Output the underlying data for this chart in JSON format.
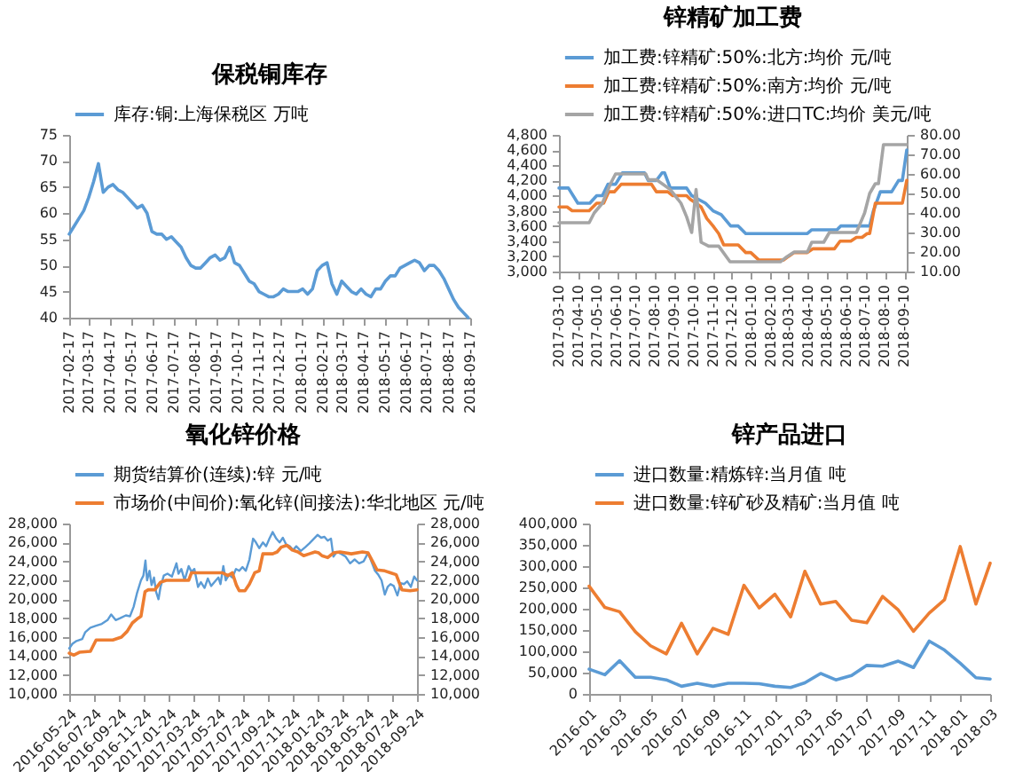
{
  "chart_data": [
    {
      "type": "line",
      "title": "保税铜库存",
      "legend": "top",
      "x": [
        "2017-02-17",
        "2017-02-24",
        "2017-03-03",
        "2017-03-10",
        "2017-03-17",
        "2017-03-24",
        "2017-03-31",
        "2017-04-07",
        "2017-04-14",
        "2017-04-21",
        "2017-04-28",
        "2017-05-05",
        "2017-05-12",
        "2017-05-19",
        "2017-05-26",
        "2017-06-02",
        "2017-06-09",
        "2017-06-16",
        "2017-06-23",
        "2017-06-30",
        "2017-07-07",
        "2017-07-14",
        "2017-07-21",
        "2017-07-28",
        "2017-08-04",
        "2017-08-11",
        "2017-08-18",
        "2017-08-25",
        "2017-09-01",
        "2017-09-08",
        "2017-09-15",
        "2017-09-22",
        "2017-09-29",
        "2017-10-06",
        "2017-10-13",
        "2017-10-20",
        "2017-10-27",
        "2017-11-03",
        "2017-11-10",
        "2017-11-17",
        "2017-11-24",
        "2017-12-01",
        "2017-12-08",
        "2017-12-15",
        "2017-12-22",
        "2017-12-29",
        "2018-01-05",
        "2018-01-12",
        "2018-01-19",
        "2018-01-26",
        "2018-02-02",
        "2018-02-09",
        "2018-02-16",
        "2018-02-23",
        "2018-03-02",
        "2018-03-09",
        "2018-03-16",
        "2018-03-23",
        "2018-03-30",
        "2018-04-06",
        "2018-04-13",
        "2018-04-20",
        "2018-04-27",
        "2018-05-04",
        "2018-05-11",
        "2018-05-18",
        "2018-05-25",
        "2018-06-01",
        "2018-06-08",
        "2018-06-15",
        "2018-06-22",
        "2018-06-29",
        "2018-07-06",
        "2018-07-13",
        "2018-07-20",
        "2018-07-27",
        "2018-08-03",
        "2018-08-10",
        "2018-08-17",
        "2018-08-24",
        "2018-08-31",
        "2018-09-07",
        "2018-09-14"
      ],
      "series": [
        {
          "name": "库存:铜:上海保税区 万吨",
          "color": "#5b9bd5",
          "values": [
            56,
            57.5,
            59,
            60.5,
            63,
            66,
            69.5,
            64,
            65,
            65.5,
            64.5,
            64,
            63,
            62,
            61,
            61.5,
            60,
            56.5,
            56,
            56,
            55,
            55.5,
            54.5,
            53.5,
            51.5,
            50,
            49.5,
            49.5,
            50.5,
            51.5,
            52,
            51,
            51.5,
            53.5,
            50.5,
            50,
            48.5,
            47,
            46.5,
            45,
            44.5,
            44,
            44,
            44.5,
            45.5,
            45,
            45,
            45,
            45.5,
            44.5,
            45.5,
            49,
            50,
            50.5,
            46.5,
            44.5,
            47,
            46,
            45,
            44.5,
            45.5,
            44.5,
            44,
            45.5,
            45.5,
            47,
            48,
            48,
            49.5,
            50,
            50.5,
            51,
            50.5,
            49,
            50,
            50,
            49,
            47.5,
            45.5,
            43.5,
            42,
            41,
            40
          ]
        }
      ],
      "xlim": [
        "2017-02-17",
        "2018-09-17"
      ],
      "xticks": [
        "2017-02-17",
        "2017-03-17",
        "2017-04-17",
        "2017-05-17",
        "2017-06-17",
        "2017-07-17",
        "2017-08-17",
        "2017-09-17",
        "2017-10-17",
        "2017-11-17",
        "2017-12-17",
        "2018-01-17",
        "2018-02-17",
        "2018-03-17",
        "2018-04-17",
        "2018-05-17",
        "2018-06-17",
        "2018-07-17",
        "2018-08-17",
        "2018-09-17"
      ],
      "ylim": [
        40,
        75
      ],
      "yticks": [
        40,
        45,
        50,
        55,
        60,
        65,
        70,
        75
      ]
    },
    {
      "type": "line",
      "title": "锌精矿加工费",
      "legend": "top",
      "series": [
        {
          "name": "加工费:锌精矿:50%:北方:均价 元/吨",
          "color": "#5b9bd5",
          "x": [
            "2017-03-10",
            "2017-03-25",
            "2017-04-09",
            "2017-04-28",
            "2017-05-09",
            "2017-05-18",
            "2017-05-27",
            "2017-06-08",
            "2017-06-19",
            "2017-07-24",
            "2017-07-30",
            "2017-08-12",
            "2017-08-21",
            "2017-08-25",
            "2017-09-03",
            "2017-09-29",
            "2017-10-07",
            "2017-10-18",
            "2017-10-29",
            "2017-11-10",
            "2017-11-23",
            "2017-12-08",
            "2017-12-20",
            "2018-01-01",
            "2018-04-09",
            "2018-04-16",
            "2018-05-26",
            "2018-06-01",
            "2018-07-17",
            "2018-07-23",
            "2018-08-03",
            "2018-08-21",
            "2018-09-01",
            "2018-09-07",
            "2018-09-14"
          ],
          "values": [
            4100,
            4100,
            3900,
            3900,
            4000,
            4000,
            4150,
            4150,
            4300,
            4300,
            4200,
            4200,
            4300,
            4300,
            4100,
            4100,
            4000,
            3950,
            3900,
            3800,
            3750,
            3600,
            3600,
            3500,
            3500,
            3550,
            3550,
            3600,
            3600,
            3800,
            4050,
            4050,
            4200,
            4200,
            4600
          ]
        },
        {
          "name": "加工费:锌精矿:50%:南方:均价 元/吨",
          "color": "#ed7d31",
          "x": [
            "2017-03-10",
            "2017-03-23",
            "2017-03-31",
            "2017-04-27",
            "2017-05-09",
            "2017-05-20",
            "2017-05-28",
            "2017-06-06",
            "2017-06-17",
            "2017-08-04",
            "2017-08-12",
            "2017-08-30",
            "2017-09-07",
            "2017-09-29",
            "2017-10-05",
            "2017-10-14",
            "2017-10-22",
            "2017-10-31",
            "2017-11-10",
            "2017-11-19",
            "2017-11-27",
            "2017-12-20",
            "2018-01-01",
            "2018-01-09",
            "2018-01-22",
            "2018-03-02",
            "2018-03-10",
            "2018-03-19",
            "2018-04-09",
            "2018-04-18",
            "2018-05-22",
            "2018-05-31",
            "2018-06-17",
            "2018-06-26",
            "2018-07-05",
            "2018-07-13",
            "2018-07-17",
            "2018-07-26",
            "2018-09-07",
            "2018-09-14"
          ],
          "values": [
            3850,
            3850,
            3800,
            3800,
            3900,
            3900,
            4050,
            4050,
            4150,
            4150,
            4050,
            4050,
            4000,
            4000,
            3950,
            3900,
            3850,
            3700,
            3600,
            3500,
            3350,
            3350,
            3250,
            3250,
            3150,
            3150,
            3200,
            3250,
            3250,
            3300,
            3300,
            3400,
            3400,
            3450,
            3450,
            3500,
            3500,
            3900,
            3900,
            4200
          ]
        },
        {
          "name": "加工费:锌精矿:50%:进口TC:均价 美元/吨",
          "color": "#a5a5a5",
          "axis": "y2",
          "x": [
            "2017-03-10",
            "2017-04-27",
            "2017-05-05",
            "2017-05-18",
            "2017-05-31",
            "2017-06-08",
            "2017-07-26",
            "2017-07-30",
            "2017-08-12",
            "2017-08-21",
            "2017-09-03",
            "2017-09-20",
            "2017-09-29",
            "2017-10-07",
            "2017-10-14",
            "2017-10-22",
            "2017-11-03",
            "2017-11-19",
            "2017-12-07",
            "2018-02-25",
            "2018-03-05",
            "2018-03-19",
            "2018-04-09",
            "2018-04-16",
            "2018-05-05",
            "2018-05-14",
            "2018-06-26",
            "2018-07-09",
            "2018-07-17",
            "2018-07-26",
            "2018-07-31",
            "2018-08-08",
            "2018-09-14"
          ],
          "values": [
            35,
            35,
            40,
            45,
            55,
            60,
            60,
            57,
            57,
            55,
            52,
            45,
            38,
            30,
            52,
            25,
            23,
            23,
            15,
            15,
            17,
            20,
            20,
            25,
            25,
            30,
            30,
            40,
            50,
            55,
            55,
            75,
            75
          ]
        }
      ],
      "xlim": [
        "2017-03-10",
        "2018-09-14"
      ],
      "xticks": [
        "2017-03-10",
        "2017-04-10",
        "2017-05-10",
        "2017-06-10",
        "2017-07-10",
        "2017-08-10",
        "2017-09-10",
        "2017-10-10",
        "2017-11-10",
        "2017-12-10",
        "2018-01-10",
        "2018-02-10",
        "2018-03-10",
        "2018-04-10",
        "2018-05-10",
        "2018-06-10",
        "2018-07-10",
        "2018-08-10",
        "2018-09-10"
      ],
      "ylim": [
        3000,
        4800
      ],
      "yticks": [
        {
          "value": 3000,
          "label": "3,000"
        },
        {
          "value": 3200,
          "label": "3,200"
        },
        {
          "value": 3400,
          "label": "3,400"
        },
        {
          "value": 3600,
          "label": "3,600"
        },
        {
          "value": 3800,
          "label": "3,800"
        },
        {
          "value": 4000,
          "label": "4,000"
        },
        {
          "value": 4200,
          "label": "4,200"
        },
        {
          "value": 4400,
          "label": "4,400"
        },
        {
          "value": 4600,
          "label": "4,600"
        },
        {
          "value": 4800,
          "label": "4,800"
        }
      ],
      "y2lim": [
        10,
        80
      ],
      "y2ticks": [
        {
          "value": 10,
          "label": "10.00"
        },
        {
          "value": 20,
          "label": "20.00"
        },
        {
          "value": 30,
          "label": "30.00"
        },
        {
          "value": 40,
          "label": "40.00"
        },
        {
          "value": 50,
          "label": "50.00"
        },
        {
          "value": 60,
          "label": "60.00"
        },
        {
          "value": 70,
          "label": "70.00"
        },
        {
          "value": 80,
          "label": "80.00"
        }
      ]
    },
    {
      "type": "line",
      "title": "氧化锌价格",
      "legend": "top",
      "series": [
        {
          "name": "期货结算价(连续):锌 元/吨",
          "color": "#5b9bd5",
          "x": [
            "2016-05-24",
            "2016-06-01",
            "2016-06-11",
            "2016-06-25",
            "2016-07-02",
            "2016-07-15",
            "2016-07-29",
            "2016-08-12",
            "2016-08-26",
            "2016-09-04",
            "2016-09-15",
            "2016-09-26",
            "2016-10-10",
            "2016-10-20",
            "2016-10-29",
            "2016-11-06",
            "2016-11-16",
            "2016-11-22",
            "2016-11-27",
            "2016-12-01",
            "2016-12-07",
            "2016-12-12",
            "2016-12-18",
            "2016-12-23",
            "2016-12-29",
            "2017-01-03",
            "2017-01-11",
            "2017-01-20",
            "2017-01-31",
            "2017-02-11",
            "2017-02-16",
            "2017-02-23",
            "2017-03-03",
            "2017-03-13",
            "2017-03-20",
            "2017-03-27",
            "2017-04-05",
            "2017-04-12",
            "2017-04-21",
            "2017-04-29",
            "2017-05-07",
            "2017-05-17",
            "2017-05-25",
            "2017-05-30",
            "2017-06-06",
            "2017-06-12",
            "2017-06-20",
            "2017-06-28",
            "2017-07-07",
            "2017-07-15",
            "2017-07-23",
            "2017-07-31",
            "2017-08-09",
            "2017-08-18",
            "2017-08-25",
            "2017-09-02",
            "2017-09-11",
            "2017-09-19",
            "2017-09-27",
            "2017-10-05",
            "2017-10-14",
            "2017-10-22",
            "2017-10-30",
            "2017-11-07",
            "2017-11-16",
            "2017-11-24",
            "2017-12-02",
            "2017-12-13",
            "2017-12-24",
            "2018-01-03",
            "2018-01-12",
            "2018-01-23",
            "2018-02-01",
            "2018-02-09",
            "2018-02-17",
            "2018-02-25",
            "2018-03-03",
            "2018-03-11",
            "2018-03-22",
            "2018-04-02",
            "2018-04-13",
            "2018-04-24",
            "2018-05-05",
            "2018-05-16",
            "2018-05-27",
            "2018-06-04",
            "2018-06-13",
            "2018-06-21",
            "2018-06-29",
            "2018-07-07",
            "2018-07-14",
            "2018-07-21",
            "2018-07-29",
            "2018-08-07",
            "2018-08-15",
            "2018-08-23",
            "2018-08-31",
            "2018-09-09",
            "2018-09-17",
            "2018-09-24"
          ],
          "values": [
            14800,
            15300,
            15600,
            15800,
            16500,
            17000,
            17200,
            17400,
            17800,
            18400,
            17800,
            18000,
            18300,
            18200,
            19200,
            20600,
            22000,
            22500,
            24100,
            22000,
            23000,
            21500,
            22300,
            20800,
            20000,
            21300,
            22500,
            22700,
            22400,
            23800,
            22700,
            23200,
            22000,
            23500,
            22900,
            23200,
            21300,
            21800,
            21200,
            22200,
            21400,
            21900,
            22300,
            21600,
            23500,
            22000,
            22600,
            22300,
            23200,
            23000,
            23400,
            23000,
            24200,
            26400,
            26000,
            25400,
            26000,
            25600,
            26400,
            27100,
            26400,
            26000,
            26500,
            25800,
            25600,
            25200,
            25600,
            25100,
            25500,
            25900,
            26300,
            26800,
            26500,
            26600,
            26200,
            26400,
            24500,
            25000,
            24800,
            24500,
            23800,
            24200,
            23800,
            24000,
            24900,
            24000,
            23000,
            22600,
            22000,
            20500,
            21300,
            21600,
            21400,
            20400,
            21700,
            21600,
            21900,
            21300,
            22400,
            22000
          ]
        },
        {
          "name": "市场价(中间价):氧化锌(间接法):华北地区 元/吨",
          "color": "#ed7d31",
          "axis": "y2",
          "x": [
            "2016-05-24",
            "2016-06-04",
            "2016-06-18",
            "2016-07-15",
            "2016-07-29",
            "2016-09-08",
            "2016-09-29",
            "2016-10-13",
            "2016-10-26",
            "2016-11-09",
            "2016-11-16",
            "2016-11-26",
            "2016-12-04",
            "2016-12-20",
            "2017-01-03",
            "2017-01-17",
            "2017-03-13",
            "2017-03-20",
            "2017-06-04",
            "2017-06-17",
            "2017-06-28",
            "2017-07-08",
            "2017-07-15",
            "2017-07-29",
            "2017-08-09",
            "2017-08-22",
            "2017-09-02",
            "2017-09-11",
            "2017-10-05",
            "2017-10-16",
            "2017-10-26",
            "2017-11-09",
            "2017-11-22",
            "2017-12-06",
            "2017-12-20",
            "2018-01-03",
            "2018-01-17",
            "2018-01-26",
            "2018-02-03",
            "2018-02-17",
            "2018-03-03",
            "2018-03-19",
            "2018-04-16",
            "2018-05-13",
            "2018-05-27",
            "2018-06-07",
            "2018-06-18",
            "2018-07-07",
            "2018-07-21",
            "2018-08-04",
            "2018-08-18",
            "2018-09-07",
            "2018-09-24"
          ],
          "values": [
            14300,
            14100,
            14400,
            14500,
            15700,
            15700,
            16000,
            16600,
            17500,
            18000,
            18200,
            20800,
            21000,
            21000,
            21800,
            22000,
            22000,
            22800,
            22800,
            22500,
            22800,
            21500,
            20900,
            20900,
            21600,
            22800,
            23000,
            24800,
            24800,
            25000,
            25500,
            25700,
            25200,
            25000,
            24600,
            24800,
            25000,
            24900,
            24600,
            24400,
            24900,
            25000,
            24800,
            25000,
            24900,
            24000,
            23100,
            23000,
            22800,
            22600,
            21000,
            20900,
            21000
          ]
        }
      ],
      "xlim": [
        "2016-05-24",
        "2018-09-24"
      ],
      "xticks": [
        "2016-05-24",
        "2016-07-24",
        "2016-09-24",
        "2016-11-24",
        "2017-01-24",
        "2017-03-24",
        "2017-05-24",
        "2017-07-24",
        "2017-09-24",
        "2017-11-24",
        "2018-01-24",
        "2018-03-24",
        "2018-05-24",
        "2018-07-24",
        "2018-09-24"
      ],
      "ylim": [
        10000,
        28000
      ],
      "yticks": [
        {
          "value": 10000,
          "label": "10,000"
        },
        {
          "value": 12000,
          "label": "12,000"
        },
        {
          "value": 14000,
          "label": "14,000"
        },
        {
          "value": 16000,
          "label": "16,000"
        },
        {
          "value": 18000,
          "label": "18,000"
        },
        {
          "value": 20000,
          "label": "20,000"
        },
        {
          "value": 22000,
          "label": "22,000"
        },
        {
          "value": 24000,
          "label": "24,000"
        },
        {
          "value": 26000,
          "label": "26,000"
        },
        {
          "value": 28000,
          "label": "28,000"
        }
      ],
      "y2lim": [
        10000,
        28000
      ],
      "y2ticks": [
        {
          "value": 10000,
          "label": "10,000"
        },
        {
          "value": 12000,
          "label": "12,000"
        },
        {
          "value": 14000,
          "label": "14,000"
        },
        {
          "value": 16000,
          "label": "16,000"
        },
        {
          "value": 18000,
          "label": "18,000"
        },
        {
          "value": 20000,
          "label": "20,000"
        },
        {
          "value": 22000,
          "label": "22,000"
        },
        {
          "value": 24000,
          "label": "24,000"
        },
        {
          "value": 26000,
          "label": "26,000"
        },
        {
          "value": 28000,
          "label": "28,000"
        }
      ]
    },
    {
      "type": "line",
      "title": "锌产品进口",
      "legend": "top",
      "x": [
        "2016-01",
        "2016-02",
        "2016-03",
        "2016-04",
        "2016-05",
        "2016-06",
        "2016-07",
        "2016-08",
        "2016-09",
        "2016-10",
        "2016-11",
        "2016-12",
        "2017-01",
        "2017-02",
        "2017-03",
        "2017-04",
        "2017-05",
        "2017-06",
        "2017-07",
        "2017-08",
        "2017-09",
        "2017-10",
        "2017-11",
        "2017-12",
        "2018-01",
        "2018-02",
        "2018-03"
      ],
      "series": [
        {
          "name": "进口数量:精炼锌:当月值 吨",
          "color": "#5b9bd5",
          "values": [
            58000,
            45000,
            78000,
            39000,
            39000,
            33000,
            18000,
            25000,
            18000,
            25000,
            25000,
            24000,
            18000,
            15000,
            26000,
            48000,
            33000,
            43000,
            67000,
            65000,
            77000,
            62000,
            124000,
            103000,
            72000,
            38000,
            35000
          ]
        },
        {
          "name": "进口数量:锌矿砂及精矿:当月值 吨",
          "color": "#ed7d31",
          "values": [
            253000,
            203000,
            193000,
            146000,
            113000,
            94000,
            166000,
            94000,
            154000,
            140000,
            255000,
            202000,
            234000,
            181000,
            288000,
            211000,
            217000,
            173000,
            167000,
            229000,
            197000,
            147000,
            190000,
            221000,
            346000,
            211000,
            307000
          ]
        }
      ],
      "xlim": [
        "2016-01",
        "2018-03"
      ],
      "xticks": [
        "2016-01",
        "2016-03",
        "2016-05",
        "2016-07",
        "2016-09",
        "2016-11",
        "2017-01",
        "2017-03",
        "2017-05",
        "2017-07",
        "2017-09",
        "2017-11",
        "2018-01",
        "2018-03"
      ],
      "ylim": [
        0,
        400000
      ],
      "yticks": [
        0,
        {
          "value": 50000,
          "label": "50,000"
        },
        {
          "value": 100000,
          "label": "100,000"
        },
        {
          "value": 150000,
          "label": "150,000"
        },
        {
          "value": 200000,
          "label": "200,000"
        },
        {
          "value": 250000,
          "label": "250,000"
        },
        {
          "value": 300000,
          "label": "300,000"
        },
        {
          "value": 350000,
          "label": "350,000"
        },
        {
          "value": 400000,
          "label": "400,000"
        }
      ]
    }
  ]
}
